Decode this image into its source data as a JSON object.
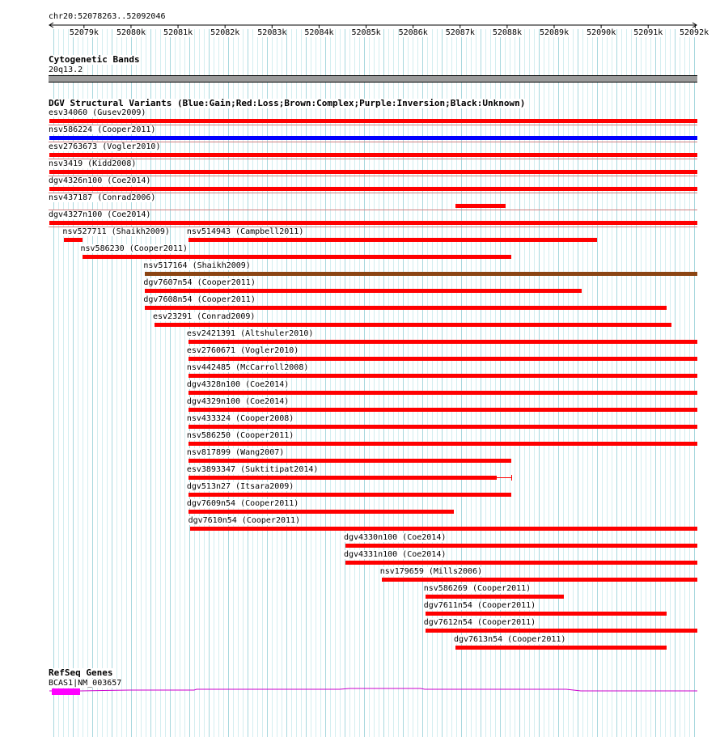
{
  "ruler": {
    "position": "chr20:52078263..52092046",
    "ticks": [
      "52079k",
      "52080k",
      "52081k",
      "52082k",
      "52083k",
      "52084k",
      "52085k",
      "52086k",
      "52087k",
      "52088k",
      "52089k",
      "52090k",
      "52091k",
      "52092k"
    ]
  },
  "cytoband": {
    "title": "Cytogenetic Bands",
    "band": "20q13.2"
  },
  "dgv": {
    "title": "DGV Structural Variants (Blue:Gain;Red:Loss;Brown:Complex;Purple:Inversion;Black:Unknown)",
    "colors": {
      "loss": "#ff0000",
      "gain": "#0000ff",
      "complex": "#8b4513"
    },
    "variants": [
      {
        "label": "esv34060 (Gusev2009)",
        "type": "loss",
        "start": 52078263,
        "end": 52092046
      },
      {
        "label": "nsv586224 (Cooper2011)",
        "type": "gain",
        "start": 52078263,
        "end": 52092046
      },
      {
        "label": "esv2763673 (Vogler2010)",
        "type": "loss",
        "start": 52078263,
        "end": 52092046
      },
      {
        "label": "nsv3419 (Kidd2008)",
        "type": "loss",
        "start": 52078263,
        "end": 52092046
      },
      {
        "label": "dgv4326n100 (Coe2014)",
        "type": "loss",
        "start": 52078263,
        "end": 52092046
      },
      {
        "label": "nsv437187 (Conrad2006)",
        "type": "loss",
        "start": 52086900,
        "end": 52087970
      },
      {
        "label": "dgv4327n100 (Coe2014)",
        "type": "loss",
        "start": 52078263,
        "end": 52092046
      },
      {
        "label": "nsv527711 (Shaikh2009)",
        "type": "loss",
        "start": 52078580,
        "end": 52078960
      },
      {
        "label": "nsv514943 (Campbell2011)",
        "type": "loss",
        "start": 52081220,
        "end": 52089920
      },
      {
        "label": "nsv586230 (Cooper2011)",
        "type": "loss",
        "start": 52078960,
        "end": 52088080
      },
      {
        "label": "nsv517164 (Shaikh2009)",
        "type": "complex",
        "start": 52080300,
        "end": 52092046
      },
      {
        "label": "dgv7607n54 (Cooper2011)",
        "type": "loss",
        "start": 52080300,
        "end": 52089580
      },
      {
        "label": "dgv7608n54 (Cooper2011)",
        "type": "loss",
        "start": 52080300,
        "end": 52091400
      },
      {
        "label": "esv23291 (Conrad2009)",
        "type": "loss",
        "start": 52080500,
        "end": 52091490
      },
      {
        "label": "esv2421391 (Altshuler2010)",
        "type": "loss",
        "start": 52081220,
        "end": 52092046
      },
      {
        "label": "esv2760671 (Vogler2010)",
        "type": "loss",
        "start": 52081220,
        "end": 52092046
      },
      {
        "label": "nsv442485 (McCarroll2008)",
        "type": "loss",
        "start": 52081220,
        "end": 52092046
      },
      {
        "label": "dgv4328n100 (Coe2014)",
        "type": "loss",
        "start": 52081220,
        "end": 52092046
      },
      {
        "label": "dgv4329n100 (Coe2014)",
        "type": "loss",
        "start": 52081220,
        "end": 52092046
      },
      {
        "label": "nsv433324 (Cooper2008)",
        "type": "loss",
        "start": 52081220,
        "end": 52092046
      },
      {
        "label": "nsv586250 (Cooper2011)",
        "type": "loss",
        "start": 52081220,
        "end": 52092046
      },
      {
        "label": "nsv817899 (Wang2007)",
        "type": "loss",
        "start": 52081220,
        "end": 52088080
      },
      {
        "label": "esv3893347 (Suktitipat2014)",
        "type": "loss",
        "start": 52081220,
        "end": 52087780,
        "whisker_end": 52088080
      },
      {
        "label": "dgv513n27 (Itsara2009)",
        "type": "loss",
        "start": 52081220,
        "end": 52088080
      },
      {
        "label": "dgv7609n54 (Cooper2011)",
        "type": "loss",
        "start": 52081220,
        "end": 52086870
      },
      {
        "label": "dgv7610n54 (Cooper2011)",
        "type": "loss",
        "start": 52081250,
        "end": 52092046
      },
      {
        "label": "dgv4330n100 (Coe2014)",
        "type": "loss",
        "start": 52084560,
        "end": 52092046
      },
      {
        "label": "dgv4331n100 (Coe2014)",
        "type": "loss",
        "start": 52084560,
        "end": 52092046
      },
      {
        "label": "nsv179659 (Mills2006)",
        "type": "loss",
        "start": 52085330,
        "end": 52092046
      },
      {
        "label": "nsv586269 (Cooper2011)",
        "type": "loss",
        "start": 52086260,
        "end": 52089210
      },
      {
        "label": "dgv7611n54 (Cooper2011)",
        "type": "loss",
        "start": 52086260,
        "end": 52091400
      },
      {
        "label": "dgv7612n54 (Cooper2011)",
        "type": "loss",
        "start": 52086260,
        "end": 52092046
      },
      {
        "label": "dgv7613n54 (Cooper2011)",
        "type": "loss",
        "start": 52086900,
        "end": 52091400
      }
    ]
  },
  "refseq": {
    "title": "RefSeq Genes",
    "gene": "BCAS1|NM_003657",
    "colors": {
      "exon": "#ff00ff",
      "line": "#cc00cc"
    }
  }
}
